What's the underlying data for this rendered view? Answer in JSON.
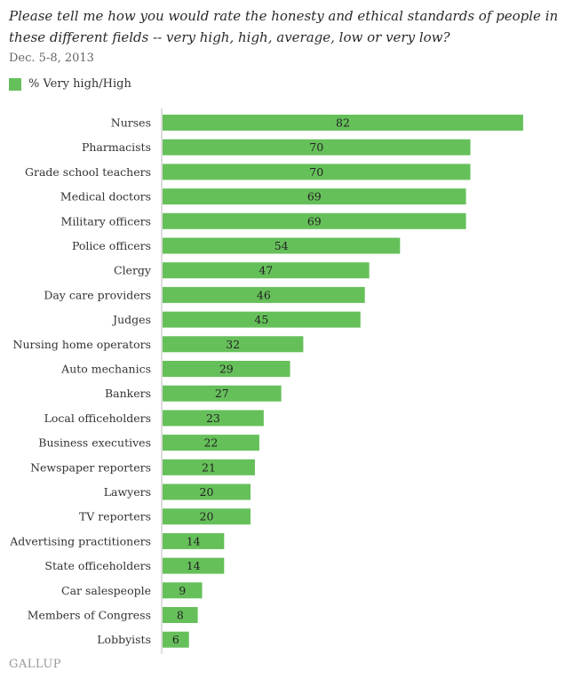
{
  "title": "Please tell me how you would rate the honesty and ethical standards of people in these different fields -- very high, high, average, low or very low?",
  "subtitle": "Dec. 5-8, 2013",
  "source": "GALLUP",
  "colors": {
    "bar": "#66c05a",
    "axis": "#bbbbbb"
  },
  "chart_data": {
    "type": "bar",
    "orientation": "horizontal",
    "categories": [
      "Nurses",
      "Pharmacists",
      "Grade school teachers",
      "Medical doctors",
      "Military officers",
      "Police officers",
      "Clergy",
      "Day care providers",
      "Judges",
      "Nursing home operators",
      "Auto mechanics",
      "Bankers",
      "Local officeholders",
      "Business executives",
      "Newspaper reporters",
      "Lawyers",
      "TV reporters",
      "Advertising practitioners",
      "State officeholders",
      "Car salespeople",
      "Members of Congress",
      "Lobbyists"
    ],
    "series": [
      {
        "name": "% Very high/High",
        "values": [
          82,
          70,
          70,
          69,
          69,
          54,
          47,
          46,
          45,
          32,
          29,
          27,
          23,
          22,
          21,
          20,
          20,
          14,
          14,
          9,
          8,
          6
        ]
      }
    ],
    "xlim": [
      0,
      90
    ],
    "grid": false,
    "legend": "top-left"
  }
}
